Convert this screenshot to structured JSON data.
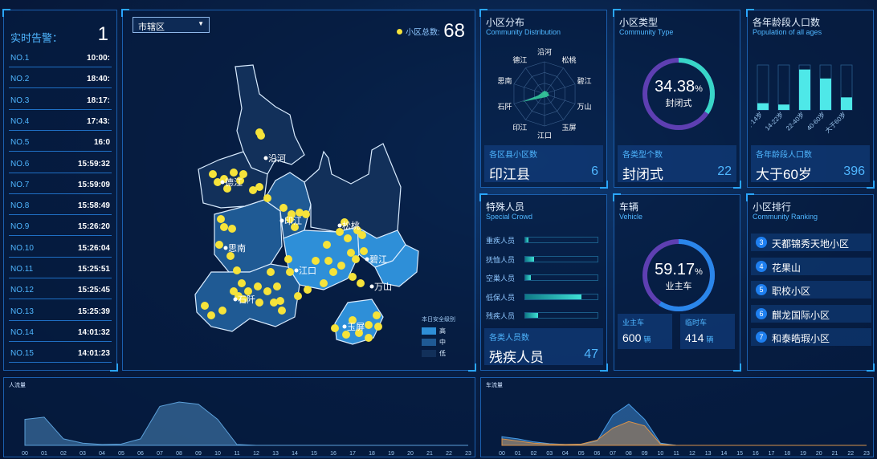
{
  "alerts": {
    "label": "实时告警：",
    "count": "1",
    "rows": [
      {
        "no": "NO.1",
        "time": "10:00:"
      },
      {
        "no": "NO.2",
        "time": "18:40:"
      },
      {
        "no": "NO.3",
        "time": "18:17:"
      },
      {
        "no": "NO.4",
        "time": "17:43:"
      },
      {
        "no": "NO.5",
        "time": "16:0"
      },
      {
        "no": "NO.6",
        "time": "15:59:32"
      },
      {
        "no": "NO.7",
        "time": "15:59:09"
      },
      {
        "no": "NO.8",
        "time": "15:58:49"
      },
      {
        "no": "NO.9",
        "time": "15:26:20"
      },
      {
        "no": "NO.10",
        "time": "15:26:04"
      },
      {
        "no": "NO.11",
        "time": "15:25:51"
      },
      {
        "no": "NO.12",
        "time": "15:25:45"
      },
      {
        "no": "NO.13",
        "time": "15:25:39"
      },
      {
        "no": "NO.14",
        "time": "14:01:32"
      },
      {
        "no": "NO.15",
        "time": "14:01:23"
      }
    ]
  },
  "map": {
    "select_value": "市辖区",
    "total_label": "小区总数:",
    "total_value": "68",
    "regions": [
      "沿河",
      "德江",
      "思南",
      "印江",
      "松桃",
      "碧江",
      "江口",
      "万山",
      "石阡",
      "玉屏"
    ],
    "legend_title": "本日安全级别",
    "legend": [
      {
        "label": "高",
        "color": "#2e8fd8"
      },
      {
        "label": "中",
        "color": "#1f5a94"
      },
      {
        "label": "低",
        "color": "#12305a"
      }
    ],
    "colors": {
      "dot": "#f6e33a"
    }
  },
  "community_dist": {
    "title": "小区分布",
    "subtitle": "Community Distribution",
    "radar_labels": [
      "沿河",
      "松桃",
      "碧江",
      "万山",
      "玉屏",
      "江口",
      "印江",
      "石阡",
      "思南",
      "德江"
    ],
    "card": {
      "label": "各区县小区数",
      "name": "印江县",
      "value": "6"
    }
  },
  "community_type": {
    "title": "小区类型",
    "subtitle": "Community Type",
    "percent": "34.38",
    "percent_sign": "%",
    "ring_label": "封闭式",
    "ring_fraction": 0.3438,
    "card": {
      "label": "各类型个数",
      "name": "封闭式",
      "value": "22"
    }
  },
  "age_pop": {
    "title": "各年龄段人口数",
    "subtitle": "Population of all ages",
    "card": {
      "label": "各年龄段人口数",
      "name": "大于60岁",
      "value": "396"
    }
  },
  "special_crowd": {
    "title": "特殊人员",
    "subtitle": "Special Crowd",
    "rows": [
      {
        "label": "重疾人员",
        "fraction": 0.04
      },
      {
        "label": "抚恤人员",
        "fraction": 0.12
      },
      {
        "label": "空巢人员",
        "fraction": 0.08
      },
      {
        "label": "低保人员",
        "fraction": 0.78
      },
      {
        "label": "残疾人员",
        "fraction": 0.18
      }
    ],
    "card": {
      "label": "各类人员数",
      "name": "残疾人员",
      "value": "47"
    }
  },
  "vehicle": {
    "title": "车辆",
    "subtitle": "Vehicle",
    "percent": "59.17",
    "percent_sign": "%",
    "ring_label": "业主车",
    "ring_fraction": 0.5917,
    "owner": {
      "label": "业主车",
      "value": "600",
      "unit": "辆"
    },
    "temp": {
      "label": "临时车",
      "value": "414",
      "unit": "辆"
    }
  },
  "ranking": {
    "title": "小区排行",
    "subtitle": "Community Ranking",
    "items": [
      {
        "num": "3",
        "name": "天都锦秀天地小区"
      },
      {
        "num": "4",
        "name": "花果山"
      },
      {
        "num": "5",
        "name": "职校小区"
      },
      {
        "num": "6",
        "name": "麒龙国际小区"
      },
      {
        "num": "7",
        "name": "和泰皓瑕小区"
      }
    ]
  },
  "hours": [
    "00",
    "01",
    "02",
    "03",
    "04",
    "05",
    "06",
    "07",
    "08",
    "09",
    "10",
    "11",
    "12",
    "13",
    "14",
    "15",
    "16",
    "17",
    "18",
    "19",
    "20",
    "21",
    "22",
    "23"
  ],
  "people_flow": {
    "title": "人流量"
  },
  "vehicle_flow": {
    "title": "车流量"
  },
  "chart_data": [
    {
      "type": "bar",
      "title": "各年龄段人口数",
      "categories": [
        "小于14岁",
        "14-22岁",
        "22-40岁",
        "40-60岁",
        "大于60岁"
      ],
      "values": [
        0.15,
        0.12,
        0.9,
        0.7,
        0.28
      ],
      "ylim": [
        0,
        1
      ]
    },
    {
      "type": "area",
      "title": "人流量",
      "x": [
        "00",
        "01",
        "02",
        "03",
        "04",
        "05",
        "06",
        "07",
        "08",
        "09",
        "10",
        "11",
        "12",
        "13",
        "14",
        "15",
        "16",
        "17",
        "18",
        "19",
        "20",
        "21",
        "22",
        "23"
      ],
      "values": [
        0.6,
        0.65,
        0.15,
        0.05,
        0.02,
        0.03,
        0.15,
        0.9,
        1.0,
        0.95,
        0.6,
        0.02,
        0,
        0,
        0,
        0,
        0,
        0,
        0,
        0,
        0,
        0,
        0,
        0
      ],
      "ylim": [
        0,
        1
      ]
    },
    {
      "type": "area",
      "title": "车流量",
      "x": [
        "00",
        "01",
        "02",
        "03",
        "04",
        "05",
        "06",
        "07",
        "08",
        "09",
        "10",
        "11",
        "12",
        "13",
        "14",
        "15",
        "16",
        "17",
        "18",
        "19",
        "20",
        "21",
        "22",
        "23"
      ],
      "series": [
        {
          "values": [
            0.2,
            0.15,
            0.08,
            0.04,
            0.02,
            0.02,
            0.1,
            0.7,
            0.95,
            0.6,
            0.05,
            0,
            0,
            0,
            0,
            0,
            0,
            0,
            0,
            0,
            0,
            0,
            0,
            0
          ],
          "color": "#4a9ee8"
        },
        {
          "values": [
            0.15,
            0.1,
            0.05,
            0.03,
            0.02,
            0.03,
            0.12,
            0.4,
            0.55,
            0.45,
            0.03,
            0,
            0,
            0,
            0,
            0,
            0,
            0,
            0,
            0,
            0,
            0,
            0,
            0
          ],
          "color": "#d8924a"
        }
      ],
      "ylim": [
        0,
        1
      ]
    }
  ]
}
